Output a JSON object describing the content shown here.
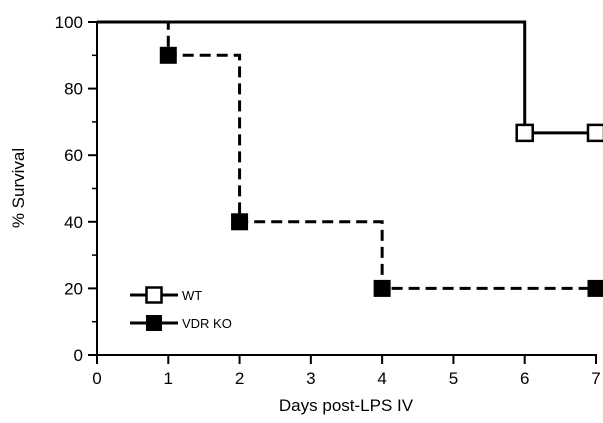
{
  "chart_data": {
    "type": "line",
    "subtype": "step",
    "xlabel": "Days post-LPS IV",
    "ylabel": "% Survival",
    "xlim": [
      0,
      7
    ],
    "ylim": [
      0,
      100
    ],
    "x_ticks": [
      0,
      1,
      2,
      3,
      4,
      5,
      6,
      7
    ],
    "y_ticks": [
      0,
      20,
      40,
      60,
      80,
      100
    ],
    "grid": false,
    "legend_position": "bottom-left",
    "series": [
      {
        "name": "WT",
        "line_style": "solid",
        "marker": "open-square",
        "color": "#000000",
        "steps": [
          {
            "x": 0,
            "y": 100
          },
          {
            "x": 6,
            "y": 66.7
          },
          {
            "x": 7,
            "y": 66.7
          }
        ],
        "markers": [
          {
            "x": 6,
            "y": 66.7
          },
          {
            "x": 7,
            "y": 66.7
          }
        ]
      },
      {
        "name": "VDR KO",
        "line_style": "dashed",
        "marker": "filled-square",
        "color": "#000000",
        "steps": [
          {
            "x": 0,
            "y": 100
          },
          {
            "x": 1,
            "y": 90
          },
          {
            "x": 2,
            "y": 40
          },
          {
            "x": 4,
            "y": 20
          },
          {
            "x": 7,
            "y": 20
          }
        ],
        "markers": [
          {
            "x": 1,
            "y": 90
          },
          {
            "x": 2,
            "y": 40
          },
          {
            "x": 4,
            "y": 20
          },
          {
            "x": 7,
            "y": 20
          }
        ]
      }
    ]
  }
}
